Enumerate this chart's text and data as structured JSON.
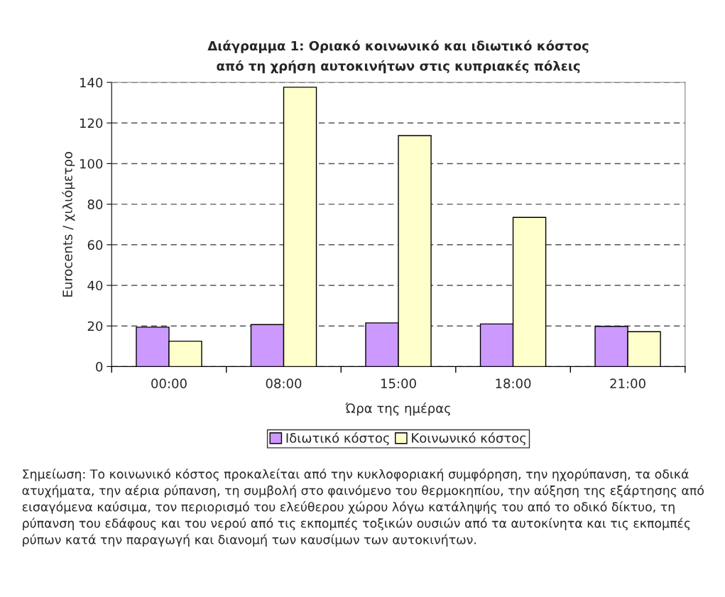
{
  "chart_data": {
    "type": "bar",
    "title": "Διάγραμμα 1: Οριακό κοινωνικό και ιδιωτικό κόστος\nαπό τη χρήση αυτοκινήτων στις κυπριακές πόλεις",
    "xlabel": "Ώρα της ημέρας",
    "ylabel": "Eurocents / χιλιόμετρο",
    "categories": [
      "00:00",
      "08:00",
      "15:00",
      "18:00",
      "21:00"
    ],
    "series": [
      {
        "name": "Ιδιωτικό κόστος",
        "color": "#cc99ff",
        "values": [
          19.4,
          20.7,
          21.5,
          21.0,
          19.8
        ]
      },
      {
        "name": "Κοινωνικό κόστος",
        "color": "#ffffcc",
        "values": [
          12.5,
          137.6,
          113.8,
          73.5,
          17.2
        ]
      }
    ],
    "ylim": [
      0,
      140
    ],
    "yticks": [
      0,
      20,
      40,
      60,
      80,
      100,
      120,
      140
    ],
    "grid": "y",
    "legend": "bottom",
    "annotations": [
      "Σημείωση: Το κοινωνικό κόστος προκαλείται από την κυκλοφοριακή συμφόρηση, την ηχορύπανση, τα οδικά ατυχήματα, την αέρια ρύπανση, τη συμβολή στο φαινόμενο του θερμοκηπίου, την αύξηση της εξάρτησης από εισαγόμενα καύσιμα, τον περιορισμό του ελεύθερου χώρου λόγω κατάληψής του από το οδικό δίκτυο, τη ρύπανση του εδάφους και του νερού από τις εκπομπές τοξικών ουσιών από τα αυτοκίνητα και τις εκπομπές ρύπων κατά την παραγωγή και διανομή των καυσίμων των αυτοκινήτων."
    ]
  }
}
